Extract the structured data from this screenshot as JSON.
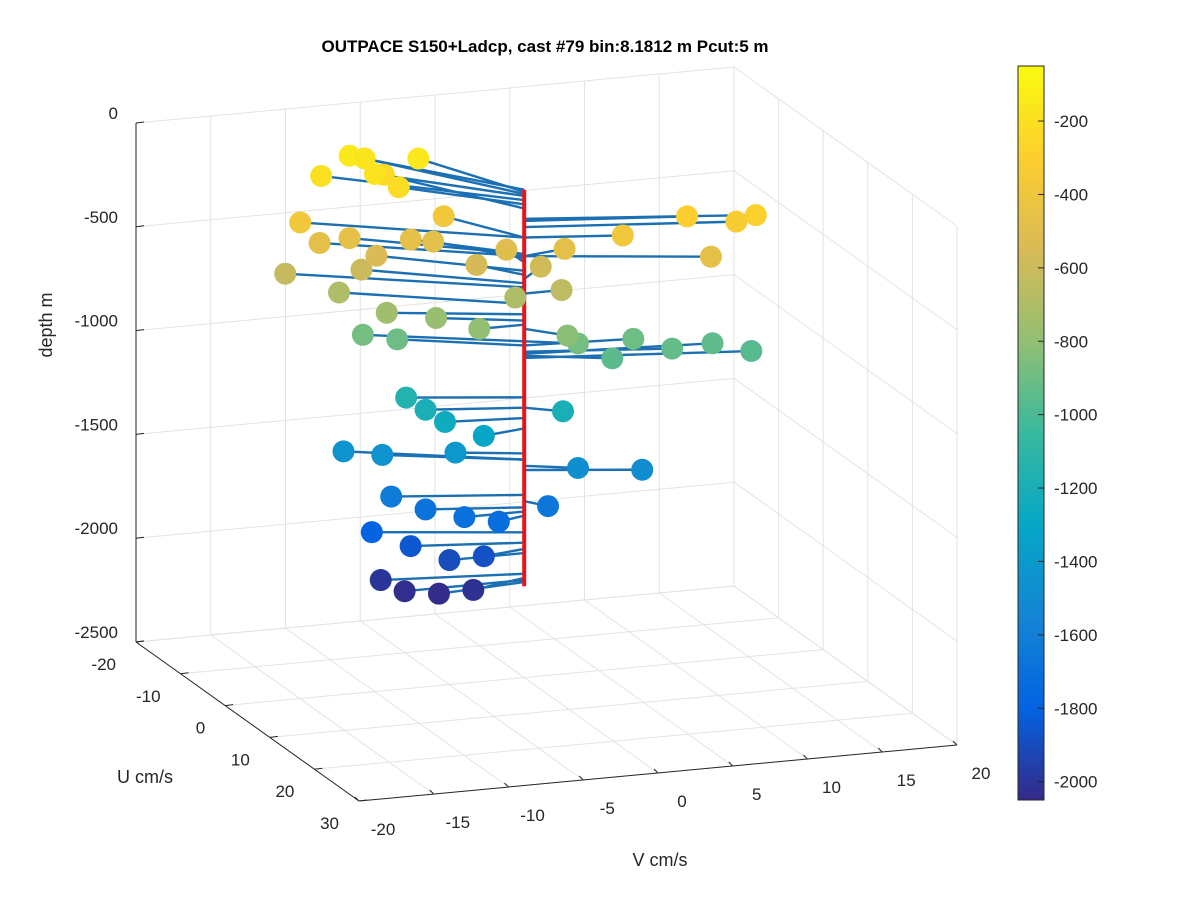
{
  "chart_data": {
    "type": "scatter",
    "title": "OUTPACE S150+Ladcp, cast #79 bin:8.1812 m  Pcut:5 m",
    "xlabel": "V cm/s",
    "ylabel": "U cm/s",
    "zlabel": "depth m",
    "xlim": [
      -20,
      20
    ],
    "ylim": [
      -20,
      30
    ],
    "zlim": [
      -2500,
      0
    ],
    "x_ticks": [
      "-20",
      "-15",
      "-10",
      "-5",
      "0",
      "5",
      "10",
      "15",
      "20"
    ],
    "y_ticks": [
      "-20",
      "-10",
      "0",
      "10",
      "20",
      "30"
    ],
    "z_ticks": [
      "0",
      "-500",
      "-1000",
      "-1500",
      "-2000",
      "-2500"
    ],
    "colorbar": {
      "range": [
        -2050,
        -50
      ],
      "ticks": [
        "-200",
        "-400",
        "-600",
        "-800",
        "-1000",
        "-1200",
        "-1400",
        "-1600",
        "-1800",
        "-2000"
      ],
      "colormap": "parula"
    },
    "grid": true,
    "view": "3-D, az ≈ -20°, el ≈ 15°",
    "series": [
      {
        "marker": "filled circles colored by depth, joined by stems to the vertical profile line",
        "stem_color": "#1b6fb3",
        "profile_color": "#e8141c",
        "points": [
          {
            "v": -10,
            "u": -12,
            "depth": -200
          },
          {
            "v": -7.5,
            "u": -14,
            "depth": -150
          },
          {
            "v": -6.5,
            "u": -14,
            "depth": -170
          },
          {
            "v": -5.5,
            "u": -13,
            "depth": -240
          },
          {
            "v": -3.5,
            "u": -12,
            "depth": -160
          },
          {
            "v": -12,
            "u": -10,
            "depth": -380
          },
          {
            "v": -11,
            "u": -9,
            "depth": -470
          },
          {
            "v": -9,
            "u": -9,
            "depth": -460
          },
          {
            "v": -8.5,
            "u": -8,
            "depth": -600
          },
          {
            "v": -7.5,
            "u": -8,
            "depth": -540
          },
          {
            "v": -7,
            "u": -10,
            "depth": -180
          },
          {
            "v": -6,
            "u": -8,
            "depth": -220
          },
          {
            "v": -5.5,
            "u": -7,
            "depth": -460
          },
          {
            "v": -4,
            "u": -7,
            "depth": -480
          },
          {
            "v": -3,
            "u": -8,
            "depth": -380
          },
          {
            "v": -2,
            "u": -4,
            "depth": -560
          },
          {
            "v": 0,
            "u": -4,
            "depth": -500
          },
          {
            "v": 2,
            "u": -3,
            "depth": -580
          },
          {
            "v": 10,
            "u": 3,
            "depth": -300
          },
          {
            "v": 14,
            "u": 5,
            "depth": -290
          },
          {
            "v": 13,
            "u": 4,
            "depth": -330
          },
          {
            "v": 11,
            "u": 5,
            "depth": -470
          },
          {
            "v": 6,
            "u": 2,
            "depth": -380
          },
          {
            "v": 3,
            "u": -1,
            "depth": -470
          },
          {
            "v": 2.5,
            "u": 0,
            "depth": -650
          },
          {
            "v": -13,
            "u": -10,
            "depth": -620
          },
          {
            "v": -10,
            "u": -8,
            "depth": -700
          },
          {
            "v": -8,
            "u": -4,
            "depth": -750
          },
          {
            "v": -5,
            "u": -3,
            "depth": -780
          },
          {
            "v": -3,
            "u": 0,
            "depth": -800
          },
          {
            "v": 0,
            "u": -2,
            "depth": -700
          },
          {
            "v": 2,
            "u": 3,
            "depth": -820
          },
          {
            "v": -9,
            "u": -6,
            "depth": -880
          },
          {
            "v": -7,
            "u": -5,
            "depth": -900
          },
          {
            "v": 3,
            "u": 2,
            "depth": -880
          },
          {
            "v": 7,
            "u": 1,
            "depth": -900
          },
          {
            "v": 9,
            "u": 3,
            "depth": -930
          },
          {
            "v": 12,
            "u": 2,
            "depth": -940
          },
          {
            "v": 14,
            "u": 4,
            "depth": -960
          },
          {
            "v": 5,
            "u": 3,
            "depth": -950
          },
          {
            "v": -7,
            "u": -3,
            "depth": -1150
          },
          {
            "v": -6,
            "u": -2,
            "depth": -1200
          },
          {
            "v": -5,
            "u": -1,
            "depth": -1250
          },
          {
            "v": -3,
            "u": 1,
            "depth": -1300
          },
          {
            "v": 2,
            "u": 2,
            "depth": -1200
          },
          {
            "v": -10,
            "u": -7,
            "depth": -1450
          },
          {
            "v": -8,
            "u": -5,
            "depth": -1450
          },
          {
            "v": -4,
            "u": -2,
            "depth": -1420
          },
          {
            "v": 3,
            "u": 2,
            "depth": -1480
          },
          {
            "v": 7,
            "u": 3,
            "depth": -1500
          },
          {
            "v": -8,
            "u": -3,
            "depth": -1620
          },
          {
            "v": -6,
            "u": -2,
            "depth": -1680
          },
          {
            "v": -4,
            "u": 0,
            "depth": -1700
          },
          {
            "v": -2,
            "u": 1,
            "depth": -1720
          },
          {
            "v": 1,
            "u": 2,
            "depth": -1650
          },
          {
            "v": -9,
            "u": -4,
            "depth": -1800
          },
          {
            "v": -7,
            "u": -2,
            "depth": -1850
          },
          {
            "v": -5,
            "u": 0,
            "depth": -1900
          },
          {
            "v": -3,
            "u": 1,
            "depth": -1880
          },
          {
            "v": -9,
            "u": -2,
            "depth": -2000
          },
          {
            "v": -8,
            "u": 0,
            "depth": -2030
          },
          {
            "v": -6,
            "u": 1,
            "depth": -2040
          },
          {
            "v": -4,
            "u": 2,
            "depth": -2020
          }
        ]
      }
    ]
  }
}
